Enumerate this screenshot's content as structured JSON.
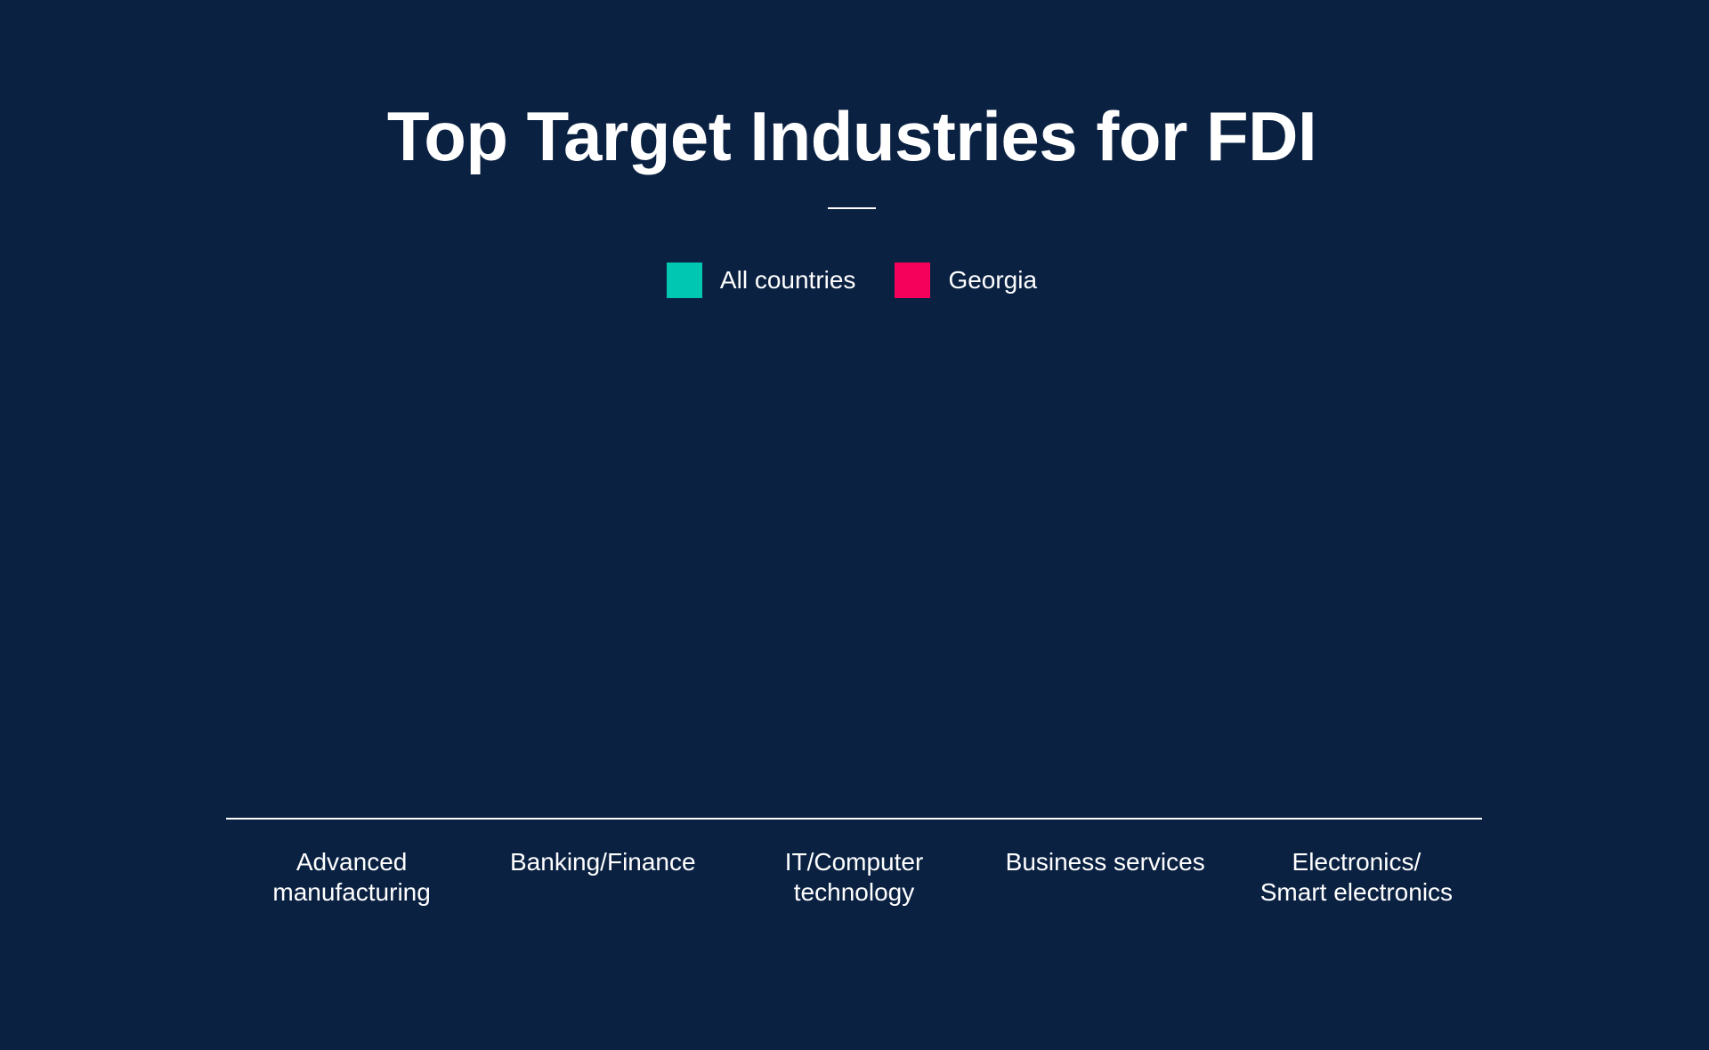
{
  "chart_data": {
    "type": "bar",
    "title": "Top Target Industries for FDI",
    "categories": [
      "Advanced manufacturing",
      "Banking/Finance",
      "IT/Computer technology",
      "Business services",
      "Electronics/ Smart electronics"
    ],
    "tick_labels": [
      [
        "Advanced",
        "manufacturing"
      ],
      [
        "Banking/Finance"
      ],
      [
        "IT/Computer",
        "technology"
      ],
      [
        "Business services"
      ],
      [
        "Electronics/",
        "Smart electronics"
      ]
    ],
    "series": [
      {
        "name": "All countries",
        "color": "#00c7b1",
        "values": [
          0,
          0,
          0,
          0,
          0
        ]
      },
      {
        "name": "Georgia",
        "color": "#f5005a",
        "values": [
          0,
          0,
          0,
          0,
          0
        ]
      }
    ],
    "xlabel": "",
    "ylabel": "",
    "ylim": [
      0,
      100
    ],
    "grid": false,
    "legend_position": "top-center"
  },
  "colors": {
    "background": "#0a2142",
    "text": "#ffffff",
    "axis": "#ffffff"
  }
}
